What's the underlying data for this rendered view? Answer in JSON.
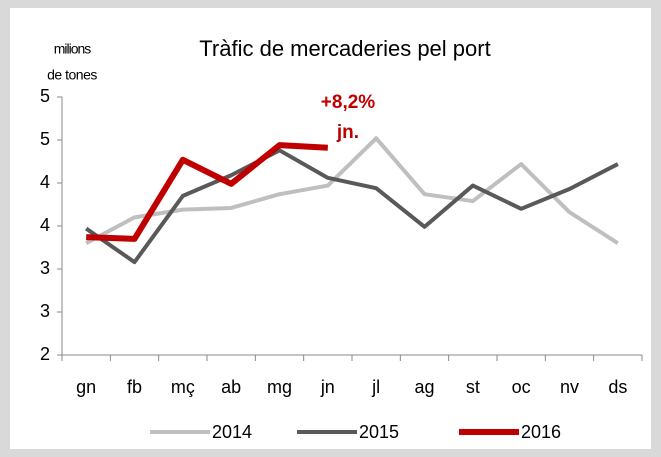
{
  "chart_data": {
    "type": "line",
    "title": "Tràfic de mercaderies pel port",
    "ylabel": [
      "milions",
      "de tones"
    ],
    "categories": [
      "gn",
      "fb",
      "mç",
      "ab",
      "mg",
      "jn",
      "jl",
      "ag",
      "st",
      "oc",
      "nv",
      "ds"
    ],
    "series": [
      {
        "name": "2014",
        "color": "#bfbfbf",
        "values": [
          3.3,
          3.6,
          3.69,
          3.71,
          3.87,
          3.97,
          4.52,
          3.87,
          3.79,
          4.22,
          3.66,
          3.3
        ]
      },
      {
        "name": "2015",
        "color": "#595959",
        "values": [
          3.47,
          3.08,
          3.85,
          4.09,
          4.38,
          4.06,
          3.94,
          3.49,
          3.97,
          3.7,
          3.93,
          4.22
        ]
      },
      {
        "name": "2016",
        "color": "#c00000",
        "values": [
          3.37,
          3.35,
          4.27,
          3.99,
          4.44,
          4.41,
          null,
          null,
          null,
          null,
          null,
          null
        ]
      }
    ],
    "annotation": [
      "+8,2%",
      "jn."
    ],
    "ylim": [
      2,
      5
    ],
    "yticks": [
      2,
      {
        "value": 2.5,
        "label": "3"
      },
      3,
      {
        "value": 3.5,
        "label": "4"
      },
      4,
      {
        "value": 4.5,
        "label": "5"
      },
      5
    ],
    "legend": "bottom"
  }
}
